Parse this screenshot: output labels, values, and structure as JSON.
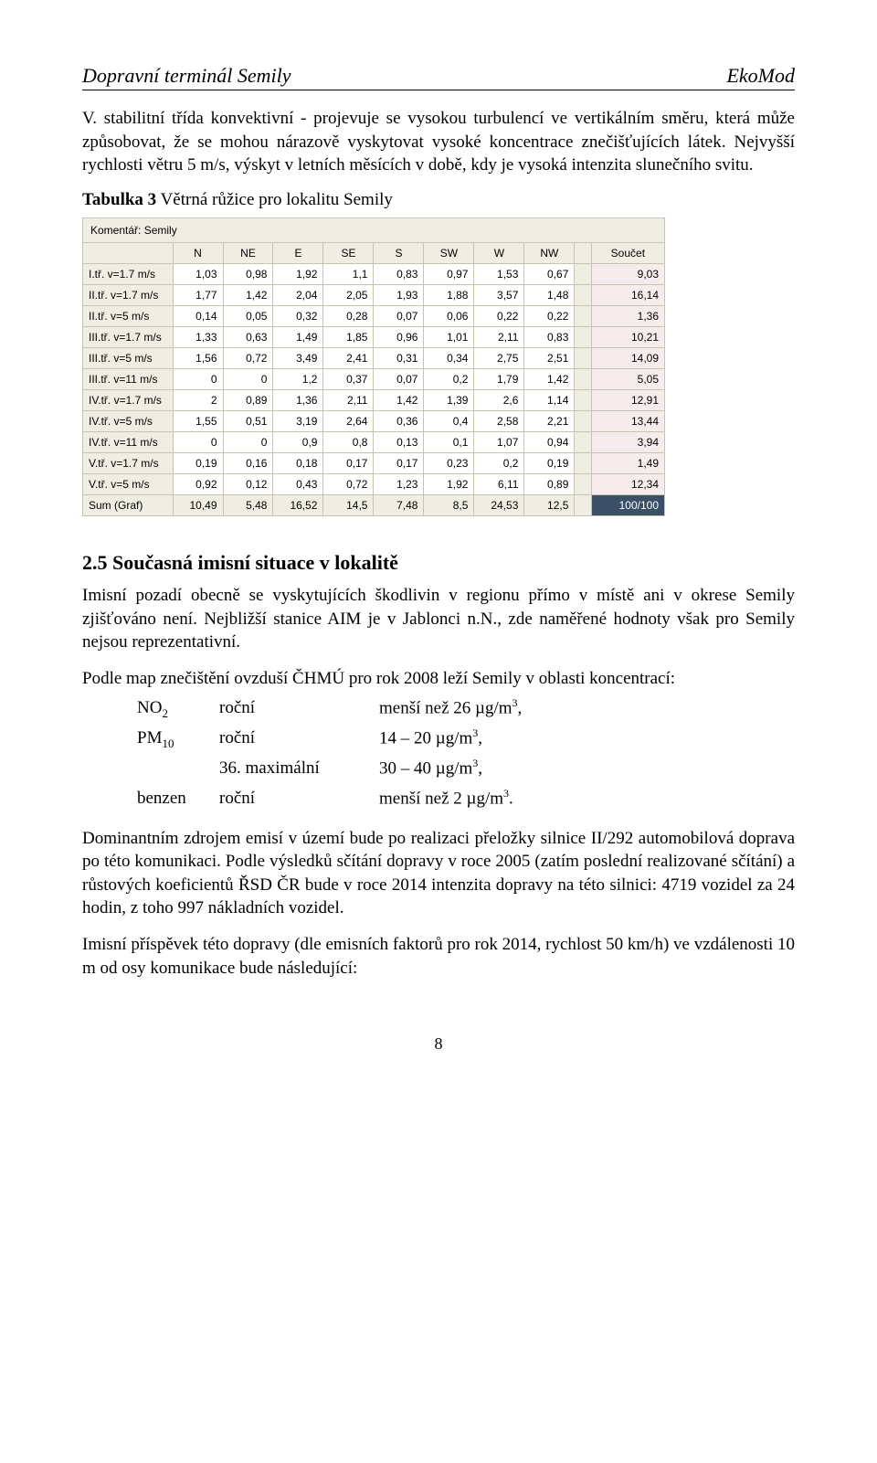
{
  "header": {
    "left": "Dopravní terminál Semily",
    "right": "EkoMod"
  },
  "para1": "V. stabilitní třída konvektivní - projevuje se vysokou turbulencí ve vertikálním směru, která může způsobovat, že se mohou nárazově vyskytovat vysoké koncentrace znečišťujících látek. Nejvyšší rychlosti větru 5 m/s, výskyt v letních měsících v době, kdy je vysoká intenzita slunečního svitu.",
  "tableCaption": {
    "bold": "Tabulka 3",
    "rest": "  Větrná růžice pro lokalitu Semily"
  },
  "rose": {
    "commentLabel": "Komentář:",
    "commentValue": "Semily",
    "dirs": [
      "N",
      "NE",
      "E",
      "SE",
      "S",
      "SW",
      "W",
      "NW"
    ],
    "sumLabel": "Součet",
    "rows": [
      {
        "lbl": "I.tř. v=1.7 m/s",
        "v": [
          "1,03",
          "0,98",
          "1,92",
          "1,1",
          "0,83",
          "0,97",
          "1,53",
          "0,67"
        ],
        "sum": "9,03"
      },
      {
        "lbl": "II.tř. v=1.7 m/s",
        "v": [
          "1,77",
          "1,42",
          "2,04",
          "2,05",
          "1,93",
          "1,88",
          "3,57",
          "1,48"
        ],
        "sum": "16,14"
      },
      {
        "lbl": "II.tř. v=5 m/s",
        "v": [
          "0,14",
          "0,05",
          "0,32",
          "0,28",
          "0,07",
          "0,06",
          "0,22",
          "0,22"
        ],
        "sum": "1,36"
      },
      {
        "lbl": "III.tř. v=1.7 m/s",
        "v": [
          "1,33",
          "0,63",
          "1,49",
          "1,85",
          "0,96",
          "1,01",
          "2,11",
          "0,83"
        ],
        "sum": "10,21"
      },
      {
        "lbl": "III.tř. v=5 m/s",
        "v": [
          "1,56",
          "0,72",
          "3,49",
          "2,41",
          "0,31",
          "0,34",
          "2,75",
          "2,51"
        ],
        "sum": "14,09"
      },
      {
        "lbl": "III.tř. v=11 m/s",
        "v": [
          "0",
          "0",
          "1,2",
          "0,37",
          "0,07",
          "0,2",
          "1,79",
          "1,42"
        ],
        "sum": "5,05"
      },
      {
        "lbl": "IV.tř. v=1.7 m/s",
        "v": [
          "2",
          "0,89",
          "1,36",
          "2,11",
          "1,42",
          "1,39",
          "2,6",
          "1,14"
        ],
        "sum": "12,91"
      },
      {
        "lbl": "IV.tř. v=5 m/s",
        "v": [
          "1,55",
          "0,51",
          "3,19",
          "2,64",
          "0,36",
          "0,4",
          "2,58",
          "2,21"
        ],
        "sum": "13,44"
      },
      {
        "lbl": "IV.tř. v=11 m/s",
        "v": [
          "0",
          "0",
          "0,9",
          "0,8",
          "0,13",
          "0,1",
          "1,07",
          "0,94"
        ],
        "sum": "3,94"
      },
      {
        "lbl": "V.tř. v=1.7 m/s",
        "v": [
          "0,19",
          "0,16",
          "0,18",
          "0,17",
          "0,17",
          "0,23",
          "0,2",
          "0,19"
        ],
        "sum": "1,49"
      },
      {
        "lbl": "V.tř. v=5 m/s",
        "v": [
          "0,92",
          "0,12",
          "0,43",
          "0,72",
          "1,23",
          "1,92",
          "6,11",
          "0,89"
        ],
        "sum": "12,34"
      }
    ],
    "sumRow": {
      "lbl": "Sum (Graf)",
      "v": [
        "10,49",
        "5,48",
        "16,52",
        "14,5",
        "7,48",
        "8,5",
        "24,53",
        "12,5"
      ],
      "sum": "100/100"
    }
  },
  "secTitle": "2.5 Současná imisní situace v lokalitě",
  "para2": "Imisní pozadí obecně se vyskytujících škodlivin v regionu přímo v místě ani v okrese Semily zjišťováno není. Nejbližší stanice AIM je v Jablonci n.N., zde naměřené hodnoty však pro Semily nejsou reprezentativní.",
  "para3": "Podle map znečištění ovzduší ČHMÚ pro rok 2008 leží Semily v oblasti koncentrací:",
  "conc": [
    {
      "c1": "NO",
      "sub": "2",
      "c2": "roční",
      "c3": "menší než 26 µg/m",
      "sup": "3",
      "tail": ","
    },
    {
      "c1": "PM",
      "sub": "10",
      "c2": "roční",
      "c3": "14 – 20 µg/m",
      "sup": "3",
      "tail": ","
    },
    {
      "c1": "",
      "sub": "",
      "c2": "36. maximální",
      "c3": "30 – 40 µg/m",
      "sup": "3",
      "tail": ","
    },
    {
      "c1": "benzen",
      "sub": "",
      "c2": "roční",
      "c3": "menší než 2 µg/m",
      "sup": "3",
      "tail": "."
    }
  ],
  "para4": "Dominantním zdrojem emisí v území bude po realizaci přeložky silnice II/292 automobilová doprava po této komunikaci. Podle výsledků sčítání dopravy v roce 2005 (zatím poslední realizované sčítání) a růstových koeficientů ŘSD ČR bude v roce 2014 intenzita dopravy na této silnici: 4719 vozidel za 24 hodin, z toho 997 nákladních vozidel.",
  "para5": "Imisní příspěvek této dopravy (dle emisních faktorů pro rok 2014, rychlost 50 km/h) ve vzdálenosti 10 m od osy komunikace bude následující:",
  "pageNum": "8"
}
